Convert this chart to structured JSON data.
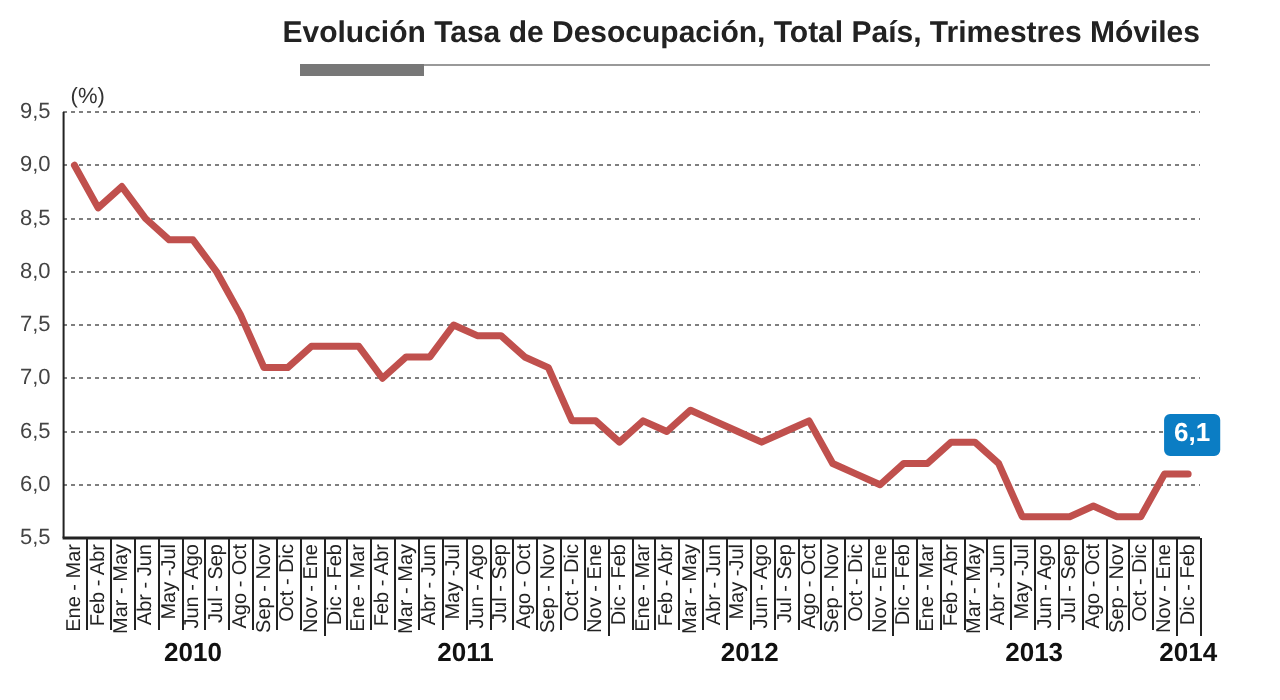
{
  "chart_data": {
    "type": "line",
    "title": "Evolución Tasa de Desocupación, Total País, Trimestres Móviles",
    "ylabel": "(%)",
    "categories": [
      "Ene - Mar",
      "Feb - Abr",
      "Mar - May",
      "Abr - Jun",
      "May -Jul",
      "Jun - Ago",
      "Jul - Sep",
      "Ago - Oct",
      "Sep - Nov",
      "Oct - Dic",
      "Nov - Ene",
      "Dic - Feb",
      "Ene - Mar",
      "Feb - Abr",
      "Mar - May",
      "Abr - Jun",
      "May -Jul",
      "Jun - Ago",
      "Jul - Sep",
      "Ago - Oct",
      "Sep - Nov",
      "Oct - Dic",
      "Nov - Ene",
      "Dic - Feb",
      "Ene - Mar",
      "Feb - Abr",
      "Mar - May",
      "Abr - Jun",
      "May -Jul",
      "Jun - Ago",
      "Jul - Sep",
      "Ago - Oct",
      "Sep - Nov",
      "Oct - Dic",
      "Nov - Ene",
      "Dic - Feb",
      "Ene - Mar",
      "Feb - Abr",
      "Mar - May",
      "Abr - Jun",
      "May -Jul",
      "Jun - Ago",
      "Jul - Sep",
      "Ago - Oct",
      "Sep - Nov",
      "Oct - Dic",
      "Nov - Ene",
      "Dic - Feb"
    ],
    "series": [
      {
        "color": "#c0504d",
        "values": [
          9.0,
          8.6,
          8.8,
          8.5,
          8.3,
          8.3,
          8.0,
          7.6,
          7.1,
          7.1,
          7.3,
          7.3,
          7.3,
          7.0,
          7.2,
          7.2,
          7.5,
          7.4,
          7.4,
          7.2,
          7.1,
          6.6,
          6.6,
          6.4,
          6.6,
          6.5,
          6.7,
          6.6,
          6.5,
          6.4,
          6.5,
          6.6,
          6.2,
          6.1,
          6.0,
          6.2,
          6.2,
          6.4,
          6.4,
          6.2,
          5.7,
          5.7,
          5.7,
          5.8,
          5.7,
          5.7,
          6.1,
          6.1
        ],
        "value_labels": [
          null,
          null,
          null,
          null,
          null,
          null,
          null,
          null,
          null,
          null,
          null,
          null,
          null,
          null,
          null,
          null,
          null,
          null,
          null,
          null,
          null,
          null,
          null,
          null,
          null,
          null,
          null,
          null,
          null,
          null,
          null,
          null,
          null,
          null,
          null,
          null,
          null,
          null,
          null,
          null,
          null,
          null,
          null,
          null,
          null,
          null,
          null,
          "6,1"
        ]
      }
    ],
    "ylim": [
      5.5,
      9.5
    ],
    "yticks": [
      {
        "value": 5.5,
        "label": "5,5"
      },
      {
        "value": 6.0,
        "label": "6,0"
      },
      {
        "value": 6.5,
        "label": "6,5"
      },
      {
        "value": 7.0,
        "label": "7,0"
      },
      {
        "value": 7.5,
        "label": "7,5"
      },
      {
        "value": 8.0,
        "label": "8,0"
      },
      {
        "value": 8.5,
        "label": "8,5"
      },
      {
        "value": 9.0,
        "label": "9,0"
      },
      {
        "value": 9.5,
        "label": "9,5"
      }
    ],
    "grid": "y",
    "legend": false,
    "marker": "none",
    "line_style": "solid",
    "annotations": [
      "2010",
      "2011",
      "2012",
      "2013",
      "2014"
    ]
  }
}
